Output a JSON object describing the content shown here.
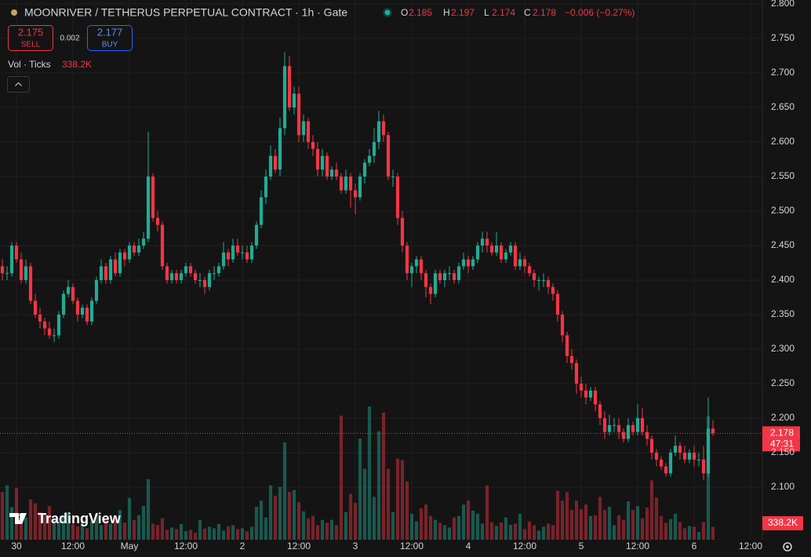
{
  "header": {
    "title": "MOONRIVER / TETHERUS PERPETUAL CONTRACT · 1h · Gate",
    "ohlc_labels": [
      "O",
      "H",
      "L",
      "C"
    ],
    "change": "−0.006 (−0.27%)",
    "sell_price": 2.175,
    "sell_label": "SELL",
    "spread": 0.002,
    "buy_price": 2.177,
    "buy_label": "BUY",
    "volume_label": "Vol · Ticks",
    "volume_value": "338.2K",
    "countdown": "47:31",
    "logo": "TradingView"
  },
  "chart_data": {
    "type": "candlestick",
    "up_color": "#22ab94",
    "down_color": "#f23645",
    "grid": true,
    "ylim": [
      2.0239,
      2.8057
    ],
    "yticks": [
      {
        "value": 2.1,
        "label": "2.100"
      },
      {
        "value": 2.15,
        "label": "2.150"
      },
      {
        "value": 2.2,
        "label": "2.200"
      },
      {
        "value": 2.25,
        "label": "2.250"
      },
      {
        "value": 2.3,
        "label": "2.300"
      },
      {
        "value": 2.35,
        "label": "2.350"
      },
      {
        "value": 2.4,
        "label": "2.400"
      },
      {
        "value": 2.45,
        "label": "2.450"
      },
      {
        "value": 2.5,
        "label": "2.500"
      },
      {
        "value": 2.55,
        "label": "2.550"
      },
      {
        "value": 2.6,
        "label": "2.600"
      },
      {
        "value": 2.65,
        "label": "2.650"
      },
      {
        "value": 2.7,
        "label": "2.700"
      },
      {
        "value": 2.75,
        "label": "2.750"
      },
      {
        "value": 2.8,
        "label": "2.800"
      }
    ],
    "xlim": [
      -0.5,
      161.5
    ],
    "xticks": [
      {
        "value": 3,
        "label": "30"
      },
      {
        "value": 15,
        "label": "12:00"
      },
      {
        "value": 27,
        "label": "May"
      },
      {
        "value": 39,
        "label": "12:00"
      },
      {
        "value": 51,
        "label": "2"
      },
      {
        "value": 63,
        "label": "12:00"
      },
      {
        "value": 75,
        "label": "3"
      },
      {
        "value": 87,
        "label": "12:00"
      },
      {
        "value": 99,
        "label": "4"
      },
      {
        "value": 111,
        "label": "12:00"
      },
      {
        "value": 123,
        "label": "5"
      },
      {
        "value": 135,
        "label": "12:00"
      },
      {
        "value": 147,
        "label": "6"
      },
      {
        "value": 159,
        "label": "12:00"
      }
    ],
    "open": [
      2.42,
      2.41,
      2.41,
      2.45,
      2.43,
      2.4,
      2.42,
      2.37,
      2.35,
      2.34,
      2.33,
      2.32,
      2.32,
      2.35,
      2.38,
      2.39,
      2.37,
      2.35,
      2.36,
      2.34,
      2.37,
      2.4,
      2.42,
      2.4,
      2.43,
      2.41,
      2.44,
      2.43,
      2.45,
      2.44,
      2.45,
      2.46,
      2.55,
      2.49,
      2.48,
      2.42,
      2.4,
      2.41,
      2.4,
      2.41,
      2.42,
      2.41,
      2.4,
      2.4,
      2.39,
      2.41,
      2.41,
      2.42,
      2.44,
      2.43,
      2.45,
      2.44,
      2.44,
      2.43,
      2.45,
      2.48,
      2.52,
      2.55,
      2.58,
      2.56,
      2.62,
      2.71,
      2.65,
      2.67,
      2.61,
      2.63,
      2.6,
      2.59,
      2.56,
      2.58,
      2.55,
      2.56,
      2.55,
      2.53,
      2.55,
      2.53,
      2.52,
      2.55,
      2.57,
      2.58,
      2.6,
      2.63,
      2.61,
      2.55,
      2.55,
      2.49,
      2.45,
      2.41,
      2.42,
      2.43,
      2.41,
      2.39,
      2.38,
      2.41,
      2.4,
      2.41,
      2.41,
      2.4,
      2.42,
      2.43,
      2.42,
      2.43,
      2.45,
      2.46,
      2.45,
      2.44,
      2.45,
      2.43,
      2.44,
      2.45,
      2.42,
      2.43,
      2.42,
      2.41,
      2.4,
      2.4,
      2.4,
      2.39,
      2.38,
      2.35,
      2.32,
      2.29,
      2.28,
      2.25,
      2.24,
      2.23,
      2.24,
      2.22,
      2.2,
      2.18,
      2.19,
      2.19,
      2.18,
      2.17,
      2.19,
      2.18,
      2.2,
      2.18,
      2.17,
      2.15,
      2.14,
      2.13,
      2.12,
      2.15,
      2.16,
      2.15,
      2.14,
      2.15,
      2.14,
      2.14,
      2.12,
      2.185
    ],
    "high": [
      2.43,
      2.42,
      2.455,
      2.455,
      2.44,
      2.43,
      2.425,
      2.38,
      2.36,
      2.345,
      2.34,
      2.33,
      2.355,
      2.385,
      2.4,
      2.395,
      2.375,
      2.365,
      2.365,
      2.375,
      2.405,
      2.43,
      2.425,
      2.435,
      2.44,
      2.445,
      2.445,
      2.455,
      2.455,
      2.46,
      2.47,
      2.615,
      2.555,
      2.5,
      2.485,
      2.425,
      2.415,
      2.415,
      2.415,
      2.425,
      2.425,
      2.415,
      2.41,
      2.405,
      2.415,
      2.42,
      2.425,
      2.455,
      2.445,
      2.46,
      2.46,
      2.45,
      2.45,
      2.455,
      2.485,
      2.53,
      2.56,
      2.595,
      2.59,
      2.635,
      2.73,
      2.725,
      2.68,
      2.68,
      2.64,
      2.635,
      2.61,
      2.6,
      2.59,
      2.585,
      2.565,
      2.57,
      2.555,
      2.56,
      2.555,
      2.54,
      2.555,
      2.575,
      2.59,
      2.62,
      2.645,
      2.64,
      2.615,
      2.56,
      2.555,
      2.5,
      2.455,
      2.425,
      2.435,
      2.435,
      2.415,
      2.395,
      2.415,
      2.415,
      2.415,
      2.42,
      2.415,
      2.425,
      2.44,
      2.435,
      2.435,
      2.455,
      2.47,
      2.47,
      2.455,
      2.47,
      2.455,
      2.445,
      2.455,
      2.455,
      2.44,
      2.435,
      2.425,
      2.415,
      2.405,
      2.41,
      2.405,
      2.395,
      2.385,
      2.355,
      2.325,
      2.3,
      2.285,
      2.26,
      2.25,
      2.245,
      2.245,
      2.225,
      2.21,
      2.205,
      2.2,
      2.2,
      2.185,
      2.2,
      2.195,
      2.22,
      2.215,
      2.19,
      2.175,
      2.155,
      2.145,
      2.135,
      2.155,
      2.175,
      2.165,
      2.16,
      2.155,
      2.16,
      2.15,
      2.16,
      2.23,
      2.197
    ],
    "low": [
      2.4,
      2.4,
      2.405,
      2.425,
      2.395,
      2.395,
      2.365,
      2.345,
      2.33,
      2.32,
      2.315,
      2.31,
      2.315,
      2.345,
      2.375,
      2.365,
      2.34,
      2.345,
      2.335,
      2.335,
      2.365,
      2.395,
      2.395,
      2.395,
      2.405,
      2.405,
      2.42,
      2.425,
      2.435,
      2.435,
      2.445,
      2.455,
      2.485,
      2.47,
      2.415,
      2.395,
      2.395,
      2.395,
      2.395,
      2.405,
      2.405,
      2.395,
      2.39,
      2.38,
      2.385,
      2.4,
      2.405,
      2.415,
      2.42,
      2.425,
      2.435,
      2.43,
      2.425,
      2.425,
      2.445,
      2.475,
      2.51,
      2.545,
      2.555,
      2.55,
      2.61,
      2.645,
      2.64,
      2.6,
      2.6,
      2.59,
      2.58,
      2.55,
      2.55,
      2.545,
      2.545,
      2.545,
      2.525,
      2.525,
      2.505,
      2.495,
      2.515,
      2.54,
      2.565,
      2.57,
      2.59,
      2.6,
      2.545,
      2.535,
      2.48,
      2.44,
      2.4,
      2.39,
      2.41,
      2.4,
      2.375,
      2.365,
      2.375,
      2.395,
      2.39,
      2.4,
      2.395,
      2.395,
      2.415,
      2.41,
      2.415,
      2.425,
      2.44,
      2.44,
      2.435,
      2.435,
      2.425,
      2.425,
      2.435,
      2.415,
      2.415,
      2.41,
      2.405,
      2.39,
      2.385,
      2.39,
      2.38,
      2.37,
      2.34,
      2.31,
      2.28,
      2.27,
      2.235,
      2.23,
      2.22,
      2.225,
      2.21,
      2.19,
      2.17,
      2.175,
      2.18,
      2.17,
      2.165,
      2.165,
      2.175,
      2.175,
      2.175,
      2.16,
      2.14,
      2.13,
      2.125,
      2.115,
      2.115,
      2.145,
      2.14,
      2.135,
      2.135,
      2.13,
      2.13,
      2.11,
      2.115,
      2.174
    ],
    "close": [
      2.41,
      2.41,
      2.45,
      2.43,
      2.4,
      2.42,
      2.37,
      2.35,
      2.34,
      2.33,
      2.32,
      2.32,
      2.35,
      2.38,
      2.39,
      2.37,
      2.35,
      2.36,
      2.34,
      2.37,
      2.4,
      2.42,
      2.4,
      2.43,
      2.41,
      2.44,
      2.43,
      2.45,
      2.44,
      2.45,
      2.46,
      2.55,
      2.49,
      2.48,
      2.42,
      2.4,
      2.41,
      2.4,
      2.41,
      2.42,
      2.41,
      2.4,
      2.4,
      2.39,
      2.41,
      2.41,
      2.42,
      2.44,
      2.43,
      2.45,
      2.44,
      2.44,
      2.43,
      2.45,
      2.48,
      2.52,
      2.55,
      2.58,
      2.56,
      2.62,
      2.71,
      2.65,
      2.67,
      2.61,
      2.63,
      2.6,
      2.59,
      2.56,
      2.58,
      2.55,
      2.56,
      2.55,
      2.53,
      2.55,
      2.53,
      2.52,
      2.55,
      2.57,
      2.58,
      2.6,
      2.63,
      2.61,
      2.55,
      2.55,
      2.49,
      2.45,
      2.41,
      2.42,
      2.43,
      2.41,
      2.39,
      2.38,
      2.41,
      2.4,
      2.41,
      2.41,
      2.4,
      2.42,
      2.43,
      2.42,
      2.43,
      2.45,
      2.46,
      2.45,
      2.44,
      2.45,
      2.43,
      2.44,
      2.45,
      2.42,
      2.43,
      2.42,
      2.41,
      2.4,
      2.4,
      2.4,
      2.39,
      2.38,
      2.35,
      2.32,
      2.29,
      2.28,
      2.25,
      2.24,
      2.23,
      2.24,
      2.22,
      2.2,
      2.18,
      2.19,
      2.19,
      2.18,
      2.17,
      2.19,
      2.18,
      2.2,
      2.18,
      2.17,
      2.15,
      2.14,
      2.13,
      2.12,
      2.15,
      2.16,
      2.15,
      2.14,
      2.15,
      2.14,
      2.14,
      2.12,
      2.185,
      2.178
    ],
    "volume": [
      1250000,
      1420000,
      850000,
      1350000,
      620000,
      580000,
      1050000,
      950000,
      720000,
      680000,
      880000,
      540000,
      460000,
      620000,
      720000,
      410000,
      350000,
      520000,
      300000,
      480000,
      650000,
      380000,
      520000,
      420000,
      560000,
      780000,
      450000,
      1090000,
      520000,
      640000,
      880000,
      1580000,
      420000,
      380000,
      560000,
      260000,
      320000,
      280000,
      410000,
      220000,
      260000,
      180000,
      520000,
      290000,
      340000,
      300000,
      410000,
      240000,
      350000,
      380000,
      280000,
      300000,
      220000,
      340000,
      860000,
      1020000,
      580000,
      1420000,
      1150000,
      1380000,
      2540000,
      1250000,
      1300000,
      980000,
      740000,
      560000,
      620000,
      380000,
      520000,
      440000,
      520000,
      380000,
      3240000,
      720000,
      1200000,
      960000,
      2640000,
      1850000,
      3480000,
      1120000,
      2830000,
      3320000,
      1850000,
      720000,
      2120000,
      2080000,
      1520000,
      680000,
      480000,
      820000,
      920000,
      620000,
      520000,
      440000,
      380000,
      320000,
      580000,
      620000,
      920000,
      1020000,
      760000,
      680000,
      420000,
      1420000,
      460000,
      360000,
      450000,
      580000,
      390000,
      420000,
      680000,
      280000,
      480000,
      380000,
      240000,
      340000,
      420000,
      380000,
      1280000,
      1020000,
      1240000,
      780000,
      1020000,
      800000,
      920000,
      620000,
      640000,
      1120000,
      780000,
      860000,
      380000,
      640000,
      520000,
      1000000,
      780000,
      880000,
      560000,
      840000,
      1550000,
      1100000,
      620000,
      440000,
      540000,
      680000,
      460000,
      300000,
      360000,
      340000,
      200000,
      460000,
      3220000,
      338200
    ]
  }
}
